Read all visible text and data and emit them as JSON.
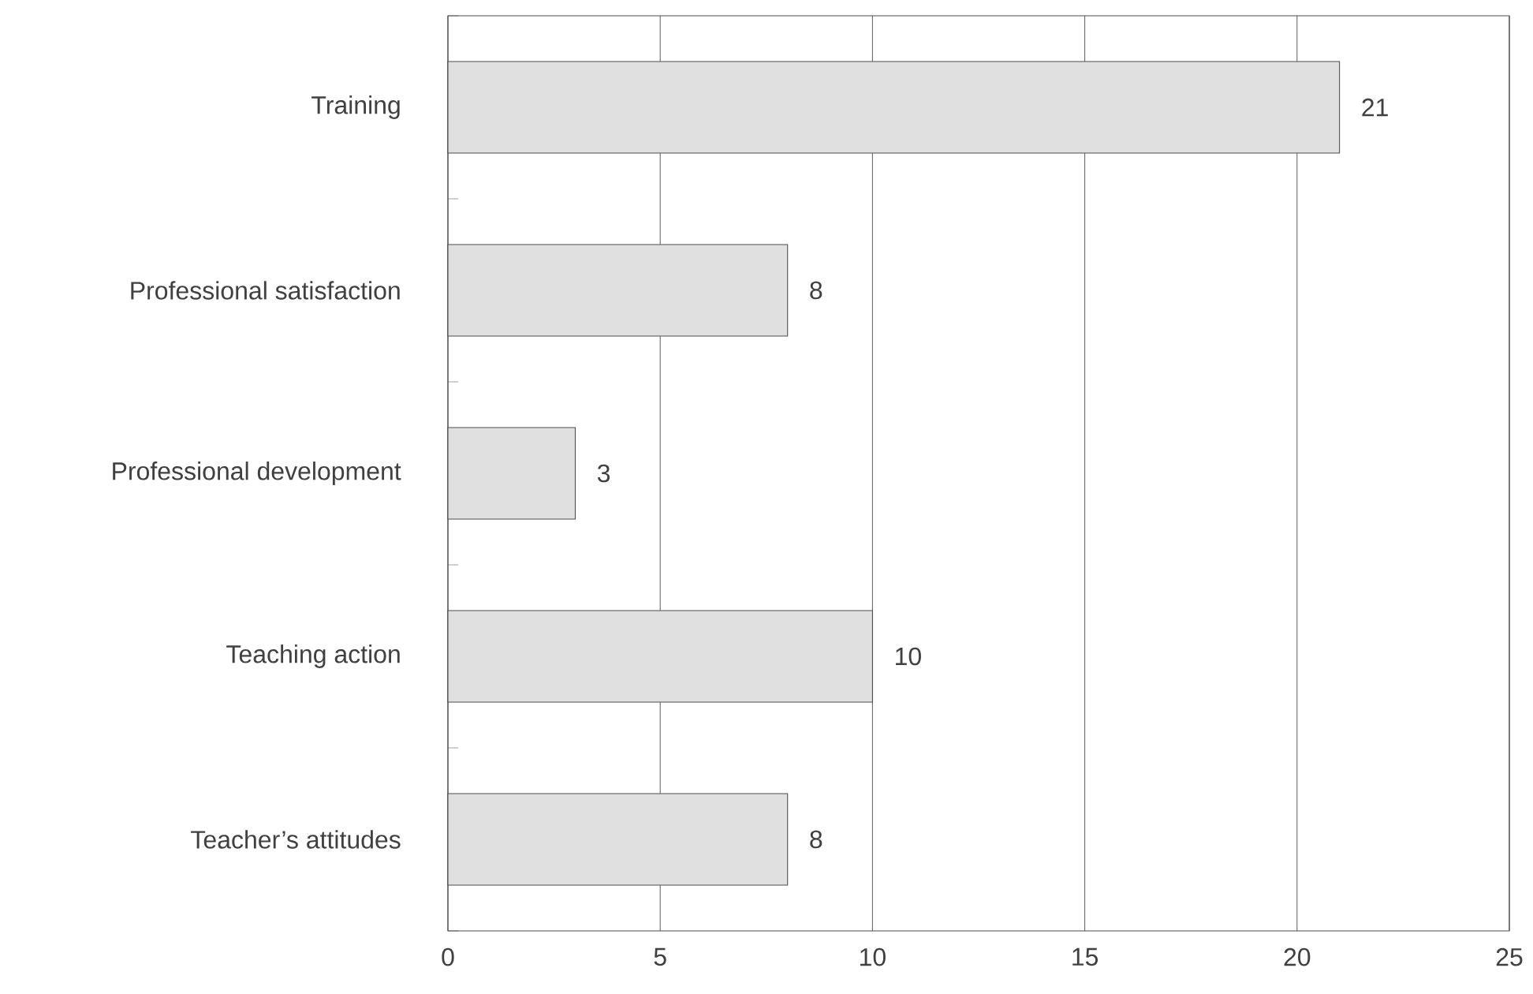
{
  "chart_data": {
    "type": "bar",
    "orientation": "horizontal",
    "categories": [
      "Training",
      "Professional satisfaction",
      "Professional development",
      "Teaching action",
      "Teacher’s attitudes"
    ],
    "values": [
      21,
      8,
      3,
      10,
      8
    ],
    "color": "#e0e0e0",
    "xlim": [
      0,
      25
    ],
    "xticks": [
      0,
      5,
      10,
      15,
      20,
      25
    ],
    "grid": "x",
    "data_labels": true
  }
}
